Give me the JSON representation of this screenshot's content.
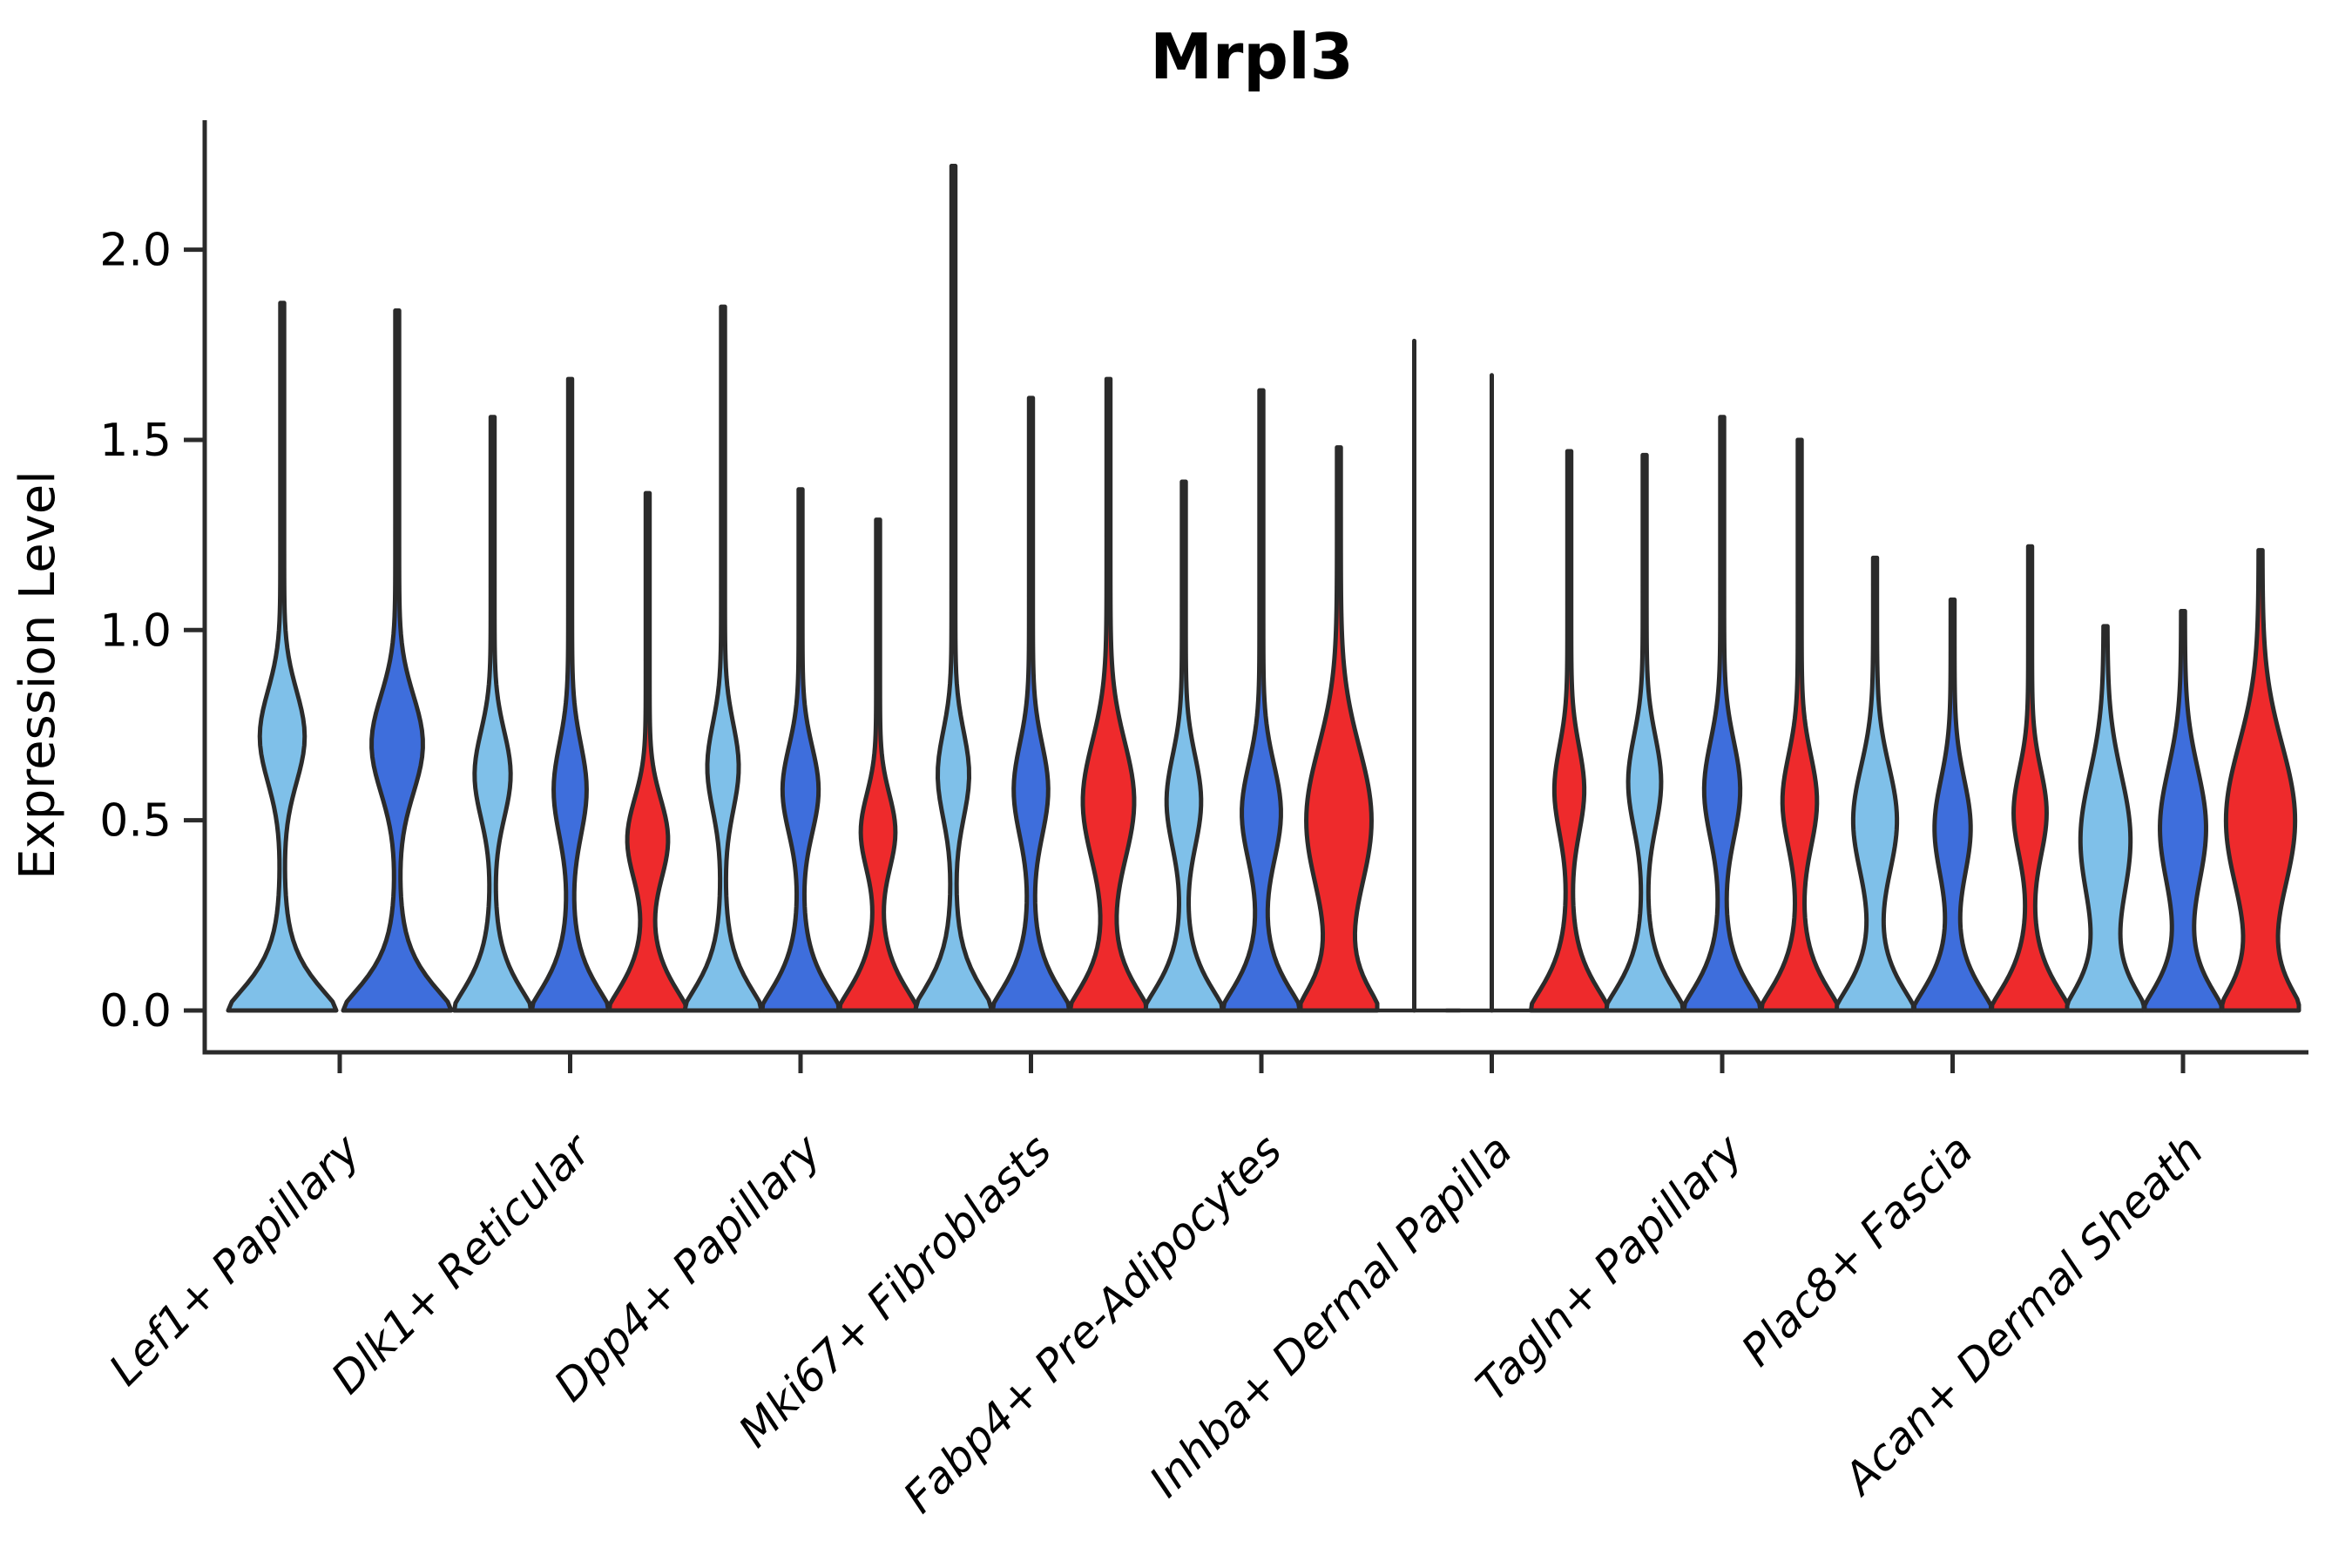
{
  "figure": {
    "title": "Mrpl3",
    "ylabel": "Expression Level"
  },
  "chart_data": {
    "type": "violin",
    "title": "Mrpl3",
    "xlabel": "",
    "ylabel": "Expression Level",
    "ylim": [
      -0.11,
      2.34
    ],
    "ytick_labels": [
      "0.0",
      "0.5",
      "1.0",
      "1.5",
      "2.0"
    ],
    "grid": false,
    "legend": "none",
    "outline_color": "#2b2b2b",
    "split_colors": {
      "light_blue": "#7fc0e9",
      "dark_blue": "#3e6edc",
      "red": "#ee2a2c"
    },
    "categories": [
      "Lef1+ Papillary",
      "Dlk1+ Reticular",
      "Dpp4+ Papillary",
      "Mki67+ Fibroblasts",
      "Fabp4+ Pre-Adipocytes",
      "Inhba+ Dermal Papilla",
      "Tagln+ Papillary",
      "Plac8+ Fascia",
      "Acan+ Dermal Sheath"
    ],
    "groups": [
      {
        "category": "Lef1+ Papillary",
        "violins": [
          {
            "split": "light_blue",
            "max": 1.86,
            "bulge_center": 0.72,
            "bulge_width": 0.38,
            "bulge_sigma": 0.17,
            "collapsed": false
          },
          {
            "split": "dark_blue",
            "max": 1.84,
            "bulge_center": 0.7,
            "bulge_width": 0.44,
            "bulge_sigma": 0.18,
            "collapsed": false
          }
        ]
      },
      {
        "category": "Dlk1+ Reticular",
        "violins": [
          {
            "split": "light_blue",
            "max": 1.56,
            "bulge_center": 0.62,
            "bulge_width": 0.42,
            "bulge_sigma": 0.16,
            "collapsed": false
          },
          {
            "split": "dark_blue",
            "max": 1.66,
            "bulge_center": 0.58,
            "bulge_width": 0.38,
            "bulge_sigma": 0.17,
            "collapsed": false
          },
          {
            "split": "red",
            "max": 1.36,
            "bulge_center": 0.45,
            "bulge_width": 0.48,
            "bulge_sigma": 0.15,
            "collapsed": false
          }
        ]
      },
      {
        "category": "Dpp4+ Papillary",
        "violins": [
          {
            "split": "light_blue",
            "max": 1.85,
            "bulge_center": 0.64,
            "bulge_width": 0.36,
            "bulge_sigma": 0.16,
            "collapsed": false
          },
          {
            "split": "dark_blue",
            "max": 1.37,
            "bulge_center": 0.58,
            "bulge_width": 0.42,
            "bulge_sigma": 0.16,
            "collapsed": false
          },
          {
            "split": "red",
            "max": 1.29,
            "bulge_center": 0.47,
            "bulge_width": 0.4,
            "bulge_sigma": 0.14,
            "collapsed": false
          }
        ]
      },
      {
        "category": "Mki67+ Fibroblasts",
        "violins": [
          {
            "split": "light_blue",
            "max": 2.22,
            "bulge_center": 0.62,
            "bulge_width": 0.36,
            "bulge_sigma": 0.16,
            "collapsed": false
          },
          {
            "split": "dark_blue",
            "max": 1.61,
            "bulge_center": 0.58,
            "bulge_width": 0.4,
            "bulge_sigma": 0.17,
            "collapsed": false
          },
          {
            "split": "red",
            "max": 1.66,
            "bulge_center": 0.55,
            "bulge_width": 0.62,
            "bulge_sigma": 0.22,
            "collapsed": false
          }
        ]
      },
      {
        "category": "Fabp4+ Pre-Adipocytes",
        "violins": [
          {
            "split": "light_blue",
            "max": 1.39,
            "bulge_center": 0.55,
            "bulge_width": 0.4,
            "bulge_sigma": 0.17,
            "collapsed": false
          },
          {
            "split": "dark_blue",
            "max": 1.63,
            "bulge_center": 0.52,
            "bulge_width": 0.46,
            "bulge_sigma": 0.18,
            "collapsed": false
          },
          {
            "split": "red",
            "max": 1.48,
            "bulge_center": 0.5,
            "bulge_width": 0.8,
            "bulge_sigma": 0.27,
            "collapsed": false
          }
        ]
      },
      {
        "category": "Inhba+ Dermal Papilla",
        "violins": [
          {
            "split": "light_blue",
            "max": 1.76,
            "bulge_center": 0.0,
            "bulge_width": 0.0,
            "bulge_sigma": 0.16,
            "collapsed": true
          },
          {
            "split": "dark_blue",
            "max": 1.67,
            "bulge_center": 0.0,
            "bulge_width": 0.0,
            "bulge_sigma": 0.16,
            "collapsed": true
          },
          {
            "split": "red",
            "max": 1.47,
            "bulge_center": 0.58,
            "bulge_width": 0.34,
            "bulge_sigma": 0.16,
            "collapsed": false
          }
        ]
      },
      {
        "category": "Tagln+ Papillary",
        "violins": [
          {
            "split": "light_blue",
            "max": 1.46,
            "bulge_center": 0.6,
            "bulge_width": 0.38,
            "bulge_sigma": 0.17,
            "collapsed": false
          },
          {
            "split": "dark_blue",
            "max": 1.56,
            "bulge_center": 0.58,
            "bulge_width": 0.42,
            "bulge_sigma": 0.18,
            "collapsed": false
          },
          {
            "split": "red",
            "max": 1.5,
            "bulge_center": 0.55,
            "bulge_width": 0.4,
            "bulge_sigma": 0.17,
            "collapsed": false
          }
        ]
      },
      {
        "category": "Plac8+ Fascia",
        "violins": [
          {
            "split": "light_blue",
            "max": 1.19,
            "bulge_center": 0.5,
            "bulge_width": 0.52,
            "bulge_sigma": 0.2,
            "collapsed": false
          },
          {
            "split": "dark_blue",
            "max": 1.08,
            "bulge_center": 0.48,
            "bulge_width": 0.42,
            "bulge_sigma": 0.18,
            "collapsed": false
          },
          {
            "split": "red",
            "max": 1.22,
            "bulge_center": 0.52,
            "bulge_width": 0.38,
            "bulge_sigma": 0.16,
            "collapsed": false
          }
        ]
      },
      {
        "category": "Acan+ Dermal Sheath",
        "violins": [
          {
            "split": "light_blue",
            "max": 1.01,
            "bulge_center": 0.45,
            "bulge_width": 0.6,
            "bulge_sigma": 0.24,
            "collapsed": false
          },
          {
            "split": "dark_blue",
            "max": 1.05,
            "bulge_center": 0.48,
            "bulge_width": 0.55,
            "bulge_sigma": 0.22,
            "collapsed": false
          },
          {
            "split": "red",
            "max": 1.21,
            "bulge_center": 0.5,
            "bulge_width": 0.85,
            "bulge_sigma": 0.28,
            "collapsed": false
          }
        ]
      }
    ]
  }
}
